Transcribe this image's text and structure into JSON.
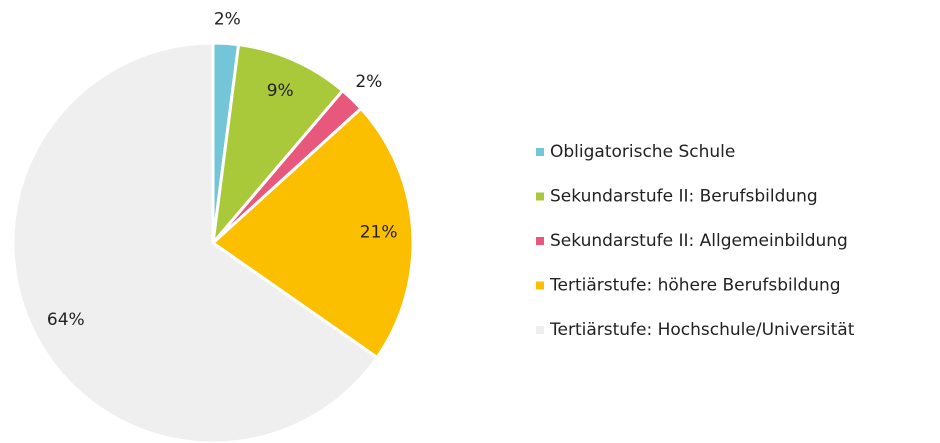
{
  "chart_data": {
    "type": "pie",
    "categories": [
      "Obligatorische Schule",
      "Sekundarstufe II: Berufsbildung",
      "Sekundarstufe II: Allgemeinbildung",
      "Tertiärstufe: höhere Berufsbildung",
      "Tertiärstufe: Hochschule/Universität"
    ],
    "values": [
      2,
      9,
      2,
      21,
      64
    ],
    "value_labels": [
      "2%",
      "9%",
      "2%",
      "21%",
      "64%"
    ],
    "colors": [
      "#72c6d8",
      "#a9c93a",
      "#e8587c",
      "#fcbf00",
      "#efefef"
    ],
    "legend": "right"
  }
}
